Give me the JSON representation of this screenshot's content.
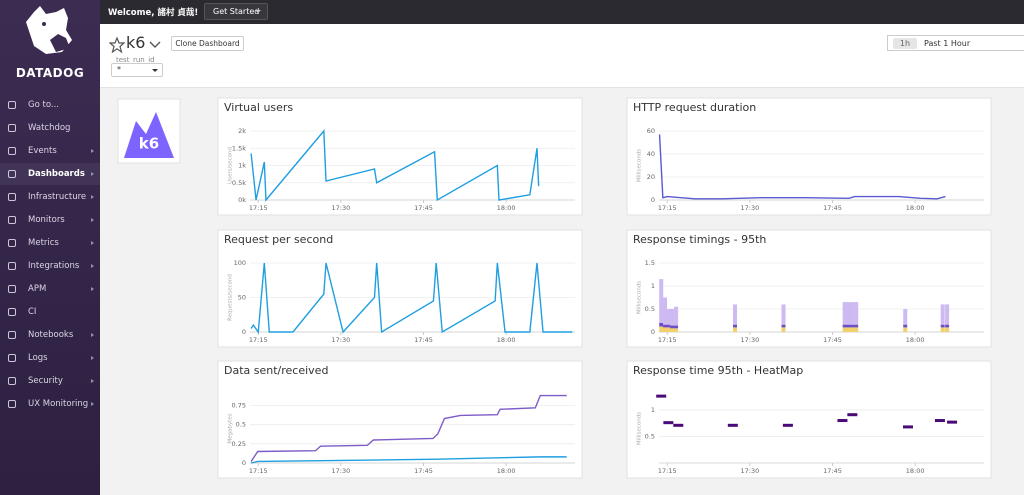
{
  "sidebar": {
    "brand": "DATADOG",
    "items": [
      {
        "label": "Go to..."
      },
      {
        "label": "Watchdog"
      },
      {
        "label": "Events"
      },
      {
        "label": "Dashboards"
      },
      {
        "label": "Infrastructure"
      },
      {
        "label": "Monitors"
      },
      {
        "label": "Metrics"
      },
      {
        "label": "Integrations"
      },
      {
        "label": "APM"
      },
      {
        "label": "CI"
      },
      {
        "label": "Notebooks"
      },
      {
        "label": "Logs"
      },
      {
        "label": "Security"
      },
      {
        "label": "UX Monitoring"
      }
    ]
  },
  "top_bar": {
    "welcome": "Welcome, 諸村 貞哉!",
    "button": "Get Started"
  },
  "header": {
    "title": "k6",
    "clone_button": "Clone Dashboard",
    "variable_label": "test_run_id",
    "variable_value": "*",
    "time_badge": "1h",
    "time_range": "Past 1 Hour"
  },
  "logo_widget": {
    "text": "k6"
  },
  "chart_data": [
    {
      "type": "line",
      "title": "Virtual users",
      "y_label": "Users/second",
      "xlim": [
        13.5,
        72.5
      ],
      "xticks": [
        {
          "value": 15,
          "label": "17:15"
        },
        {
          "value": 30,
          "label": "17:30"
        },
        {
          "value": 45,
          "label": "17:45"
        },
        {
          "value": 60,
          "label": "18:00"
        }
      ],
      "ylim": [
        0,
        2000
      ],
      "yticks": [
        {
          "value": 0,
          "label": "0k"
        },
        {
          "value": 500,
          "label": "0.5k"
        },
        {
          "value": 1000,
          "label": "1k"
        },
        {
          "value": 1500,
          "label": "1.5k"
        },
        {
          "value": 2000,
          "label": "2k"
        }
      ],
      "series": [
        {
          "color": "#1f9fe0",
          "x": [
            13.7,
            14.6,
            16.1,
            16.4,
            26.9,
            27.3,
            36.1,
            36.5,
            47.0,
            47.5,
            58.4,
            58.7,
            64.3,
            65.6,
            65.9
          ],
          "values": [
            1350,
            0,
            1100,
            0,
            2000,
            550,
            900,
            500,
            1400,
            0,
            1000,
            0,
            150,
            1500,
            400
          ]
        }
      ]
    },
    {
      "type": "line",
      "title": "HTTP request duration",
      "y_label": "Milliseconds",
      "xlim": [
        13.5,
        72.5
      ],
      "xticks": [
        {
          "value": 15,
          "label": "17:15"
        },
        {
          "value": 30,
          "label": "17:30"
        },
        {
          "value": 45,
          "label": "17:45"
        },
        {
          "value": 60,
          "label": "18:00"
        }
      ],
      "ylim": [
        0,
        60
      ],
      "yticks": [
        0,
        20,
        40,
        60
      ],
      "series": [
        {
          "color": "#5a5ad1",
          "x": [
            13.6,
            14.2,
            15,
            20,
            25,
            32,
            40,
            48,
            49,
            57,
            61,
            64,
            65.5
          ],
          "values": [
            57,
            2,
            3,
            1,
            1,
            2,
            2,
            1.5,
            3,
            3,
            1.5,
            1,
            3
          ]
        }
      ]
    },
    {
      "type": "line",
      "title": "Request per second",
      "y_label": "Requests/second",
      "xlim": [
        13.5,
        72.5
      ],
      "xticks": [
        {
          "value": 15,
          "label": "17:15"
        },
        {
          "value": 30,
          "label": "17:30"
        },
        {
          "value": 45,
          "label": "17:45"
        },
        {
          "value": 60,
          "label": "18:00"
        }
      ],
      "ylim": [
        0,
        100
      ],
      "yticks": [
        0,
        50,
        100
      ],
      "series": [
        {
          "color": "#1f9fe0",
          "x": [
            13.7,
            14.1,
            15,
            16.1,
            17.0,
            21.3,
            26.9,
            27.3,
            30.4,
            36.1,
            36.5,
            37.4,
            46.8,
            47.3,
            48.4,
            58.0,
            58.4,
            59.8,
            64.3,
            65.6,
            66.7,
            72.0
          ],
          "values": [
            5,
            10,
            0,
            100,
            0,
            0,
            55,
            100,
            0,
            50,
            100,
            0,
            45,
            100,
            0,
            45,
            100,
            0,
            0,
            100,
            0,
            0
          ]
        }
      ]
    },
    {
      "type": "bar",
      "title": "Response timings - 95th",
      "y_label": "Milliseconds",
      "xlim": [
        13.5,
        72.5
      ],
      "xticks": [
        {
          "value": 15,
          "label": "17:15"
        },
        {
          "value": 30,
          "label": "17:30"
        },
        {
          "value": 45,
          "label": "17:45"
        },
        {
          "value": 60,
          "label": "18:00"
        }
      ],
      "ylim": [
        0,
        1.5
      ],
      "yticks": [
        0,
        0.5,
        1,
        1.5
      ],
      "x": [
        13.9,
        14.6,
        15.3,
        15.9,
        16.6,
        27.3,
        36.1,
        47.2,
        47.9,
        48.6,
        49.3,
        58.2,
        65.0,
        65.8
      ],
      "series": [
        {
          "color": "#f2d06b",
          "values": [
            0.12,
            0.1,
            0.1,
            0.08,
            0.08,
            0.1,
            0.1,
            0.1,
            0.1,
            0.1,
            0.1,
            0.1,
            0.1,
            0.1
          ]
        },
        {
          "color": "#6a4fc6",
          "values": [
            0.08,
            0.06,
            0.06,
            0.06,
            0.06,
            0.06,
            0.06,
            0.06,
            0.06,
            0.06,
            0.06,
            0.06,
            0.06,
            0.06
          ]
        },
        {
          "color": "#cdbaf2",
          "values": [
            0.95,
            0.59,
            0.34,
            0.36,
            0.41,
            0.44,
            0.44,
            0.49,
            0.49,
            0.49,
            0.49,
            0.34,
            0.44,
            0.44
          ]
        }
      ]
    },
    {
      "type": "line",
      "title": "Data sent/received",
      "y_label": "Megabytes",
      "xlim": [
        13.5,
        72.5
      ],
      "xticks": [
        {
          "value": 15,
          "label": "17:15"
        },
        {
          "value": 30,
          "label": "17:30"
        },
        {
          "value": 45,
          "label": "17:45"
        },
        {
          "value": 60,
          "label": "18:00"
        }
      ],
      "ylim": [
        0,
        0.9
      ],
      "yticks": [
        0,
        0.25,
        0.5,
        0.75
      ],
      "series": [
        {
          "color": "#7d5bc8",
          "x": [
            13.7,
            14.9,
            25.4,
            26.3,
            34.8,
            35.9,
            46.7,
            47.6,
            48.8,
            51.7,
            58.4,
            58.9,
            65.3,
            66.2,
            71.0
          ],
          "values": [
            0.02,
            0.15,
            0.16,
            0.22,
            0.23,
            0.3,
            0.32,
            0.38,
            0.58,
            0.62,
            0.63,
            0.7,
            0.72,
            0.88,
            0.88
          ]
        },
        {
          "color": "#1f9fe0",
          "x": [
            13.7,
            14.9,
            26.3,
            47.6,
            66.2,
            71.0
          ],
          "values": [
            0,
            0.02,
            0.03,
            0.05,
            0.08,
            0.08
          ]
        }
      ]
    },
    {
      "type": "heatmap",
      "title": "Response time 95th - HeatMap",
      "y_label": "Milliseconds",
      "xlim": [
        13.5,
        72.5
      ],
      "xticks": [
        {
          "value": 15,
          "label": "17:15"
        },
        {
          "value": 30,
          "label": "17:30"
        },
        {
          "value": 45,
          "label": "17:45"
        },
        {
          "value": 60,
          "label": "18:00"
        }
      ],
      "ylim": [
        0,
        1.3
      ],
      "yticks": [
        0.5,
        1
      ],
      "color": "#4a0a78",
      "x": [
        13.9,
        15.2,
        17.0,
        26.9,
        36.9,
        46.8,
        48.6,
        58.7,
        64.5,
        66.7
      ],
      "values": [
        1.26,
        0.76,
        0.71,
        0.71,
        0.71,
        0.8,
        0.91,
        0.68,
        0.8,
        0.77
      ]
    }
  ]
}
